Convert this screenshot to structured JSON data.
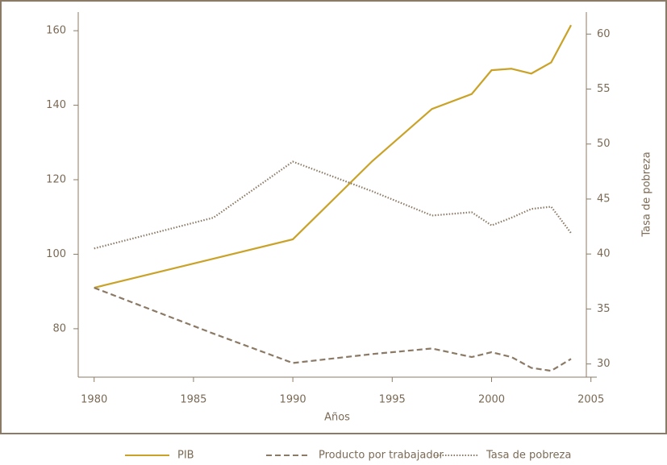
{
  "chart_data": {
    "type": "line",
    "xlabel": "Años",
    "y2label": "Tasa de pobreza",
    "series": [
      {
        "name": "PIB",
        "color": "#c9a227",
        "dash": "solid",
        "axis": "y",
        "x": [
          1980,
          1990,
          1994,
          1997,
          1999,
          2000,
          2001,
          2002,
          2003,
          2004
        ],
        "values": [
          91,
          104,
          125,
          139,
          143,
          149.4,
          149.8,
          148.5,
          151.5,
          161.5
        ]
      },
      {
        "name": "Producto por trabajador",
        "color": "#8b7a66",
        "dash": "dashed",
        "axis": "y",
        "x": [
          1980,
          1986,
          1990,
          1994,
          1997,
          1999,
          2000,
          2001,
          2002,
          2003,
          2004
        ],
        "values": [
          91,
          78.7,
          70.8,
          73.2,
          74.7,
          72.4,
          73.7,
          72.4,
          69.5,
          68.7,
          71.9
        ]
      },
      {
        "name": "Tasa de pobreza",
        "color": "#8b7a66",
        "dash": "dotted",
        "axis": "y2",
        "x": [
          1980,
          1986,
          1990,
          1994,
          1997,
          1999,
          2000,
          2001,
          2002,
          2003,
          2004
        ],
        "values": [
          40.5,
          43.3,
          48.4,
          45.7,
          43.5,
          43.8,
          42.6,
          43.3,
          44.1,
          44.3,
          41.9
        ]
      }
    ],
    "xlim": [
      1979.2,
      2005.5
    ],
    "xticks": [
      1980,
      1985,
      1990,
      1995,
      2000,
      2005
    ],
    "ylim": [
      67,
      165
    ],
    "yticks": [
      80,
      100,
      120,
      140,
      160
    ],
    "y2lim": [
      28.8,
      62
    ],
    "y2ticks": [
      30,
      35,
      40,
      45,
      50,
      55,
      60
    ],
    "legend": "bottom"
  }
}
